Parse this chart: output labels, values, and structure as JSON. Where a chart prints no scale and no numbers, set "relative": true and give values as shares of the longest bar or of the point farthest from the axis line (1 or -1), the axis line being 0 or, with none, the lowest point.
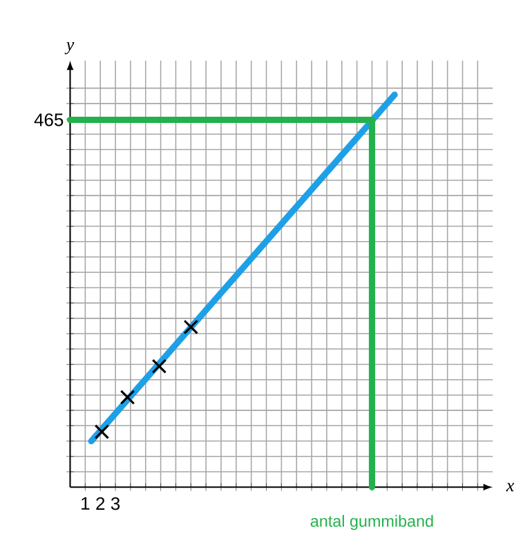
{
  "chart_data": {
    "type": "line",
    "relative": true,
    "xlabel": "x",
    "ylabel": "y",
    "xlim": [
      0,
      28
    ],
    "xticks": [
      {
        "value": 1,
        "label": "1"
      },
      {
        "value": 2,
        "label": "2"
      },
      {
        "value": 3,
        "label": "3"
      },
      {
        "value": 4,
        "label": null
      },
      {
        "value": 5,
        "label": null
      },
      {
        "value": 6,
        "label": null
      },
      {
        "value": 7,
        "label": null
      },
      {
        "value": 8,
        "label": null
      },
      {
        "value": 9,
        "label": null
      },
      {
        "value": 10,
        "label": null
      },
      {
        "value": 11,
        "label": null
      },
      {
        "value": 12,
        "label": null
      },
      {
        "value": 13,
        "label": null
      },
      {
        "value": 14,
        "label": null
      },
      {
        "value": 15,
        "label": null
      },
      {
        "value": 16,
        "label": null
      },
      {
        "value": 17,
        "label": null
      },
      {
        "value": 18,
        "label": null
      },
      {
        "value": 19,
        "label": null
      },
      {
        "value": 20,
        "label": null
      },
      {
        "value": 21,
        "label": null
      },
      {
        "value": 22,
        "label": null
      },
      {
        "value": 23,
        "label": null
      },
      {
        "value": 24,
        "label": null
      },
      {
        "value": 25,
        "label": null
      },
      {
        "value": 26,
        "label": null
      },
      {
        "value": 27,
        "label": null
      }
    ],
    "grid": true,
    "series": [
      {
        "color": "#1ea0e6",
        "x": [
          1.4,
          21.5
        ],
        "values": [
          0.117,
          1
        ]
      },
      {
        "color": "#22b14c",
        "x": [
          0,
          20,
          20
        ],
        "values": [
          0.936,
          0.936,
          0
        ]
      },
      {
        "type": "scatter",
        "marker": "cross",
        "color": "#000000",
        "x": [
          2.1,
          3.8,
          5.9,
          8.0
        ],
        "values": [
          0.141,
          0.229,
          0.308,
          0.408
        ]
      }
    ],
    "annotations": [
      {
        "text": "465",
        "x": 0,
        "y": 0.936
      },
      {
        "text": "antal gummiband",
        "x": 20,
        "y": 0
      }
    ]
  }
}
